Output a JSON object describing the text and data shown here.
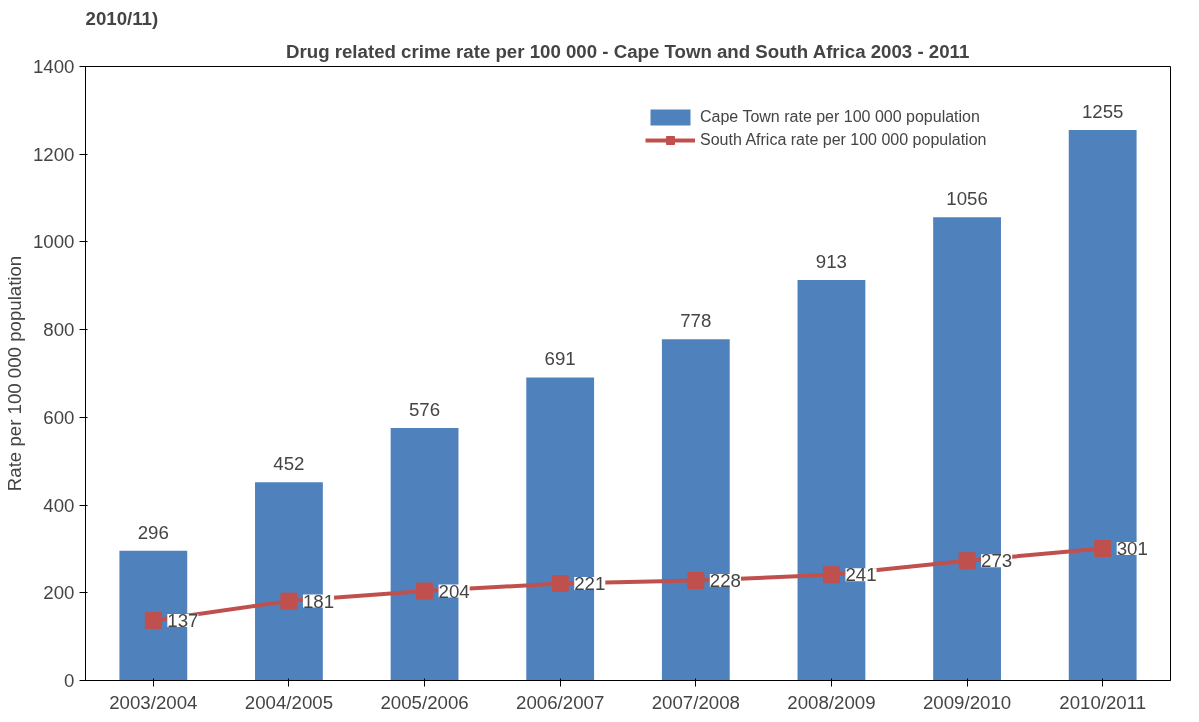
{
  "chart_data": {
    "type": "bar",
    "title": "Drug related crime rate per 100 000 - Cape Town and South Africa 2003 - 2011",
    "ylabel": "Rate per 100 000 population",
    "annotations": [
      "2010/11)"
    ],
    "categories": [
      "2003/2004",
      "2004/2005",
      "2005/2006",
      "2006/2007",
      "2007/2008",
      "2008/2009",
      "2009/2010",
      "2010/2011"
    ],
    "series": [
      {
        "name": "Cape Town rate per 100 000 population",
        "color": "#4f81bd",
        "values": [
          296,
          452,
          576,
          691,
          778,
          913,
          1056,
          1255
        ]
      },
      {
        "name": "South Africa rate per 100 000 population",
        "type": "line",
        "color": "#c0504d",
        "values": [
          137,
          181,
          204,
          221,
          228,
          241,
          273,
          301
        ]
      }
    ],
    "ylim": [
      0,
      1400
    ],
    "yticks": [
      0,
      200,
      400,
      600,
      800,
      1000,
      1200,
      1400
    ],
    "data_labels": true,
    "legend": "top right",
    "marker": "square",
    "grid": false
  }
}
